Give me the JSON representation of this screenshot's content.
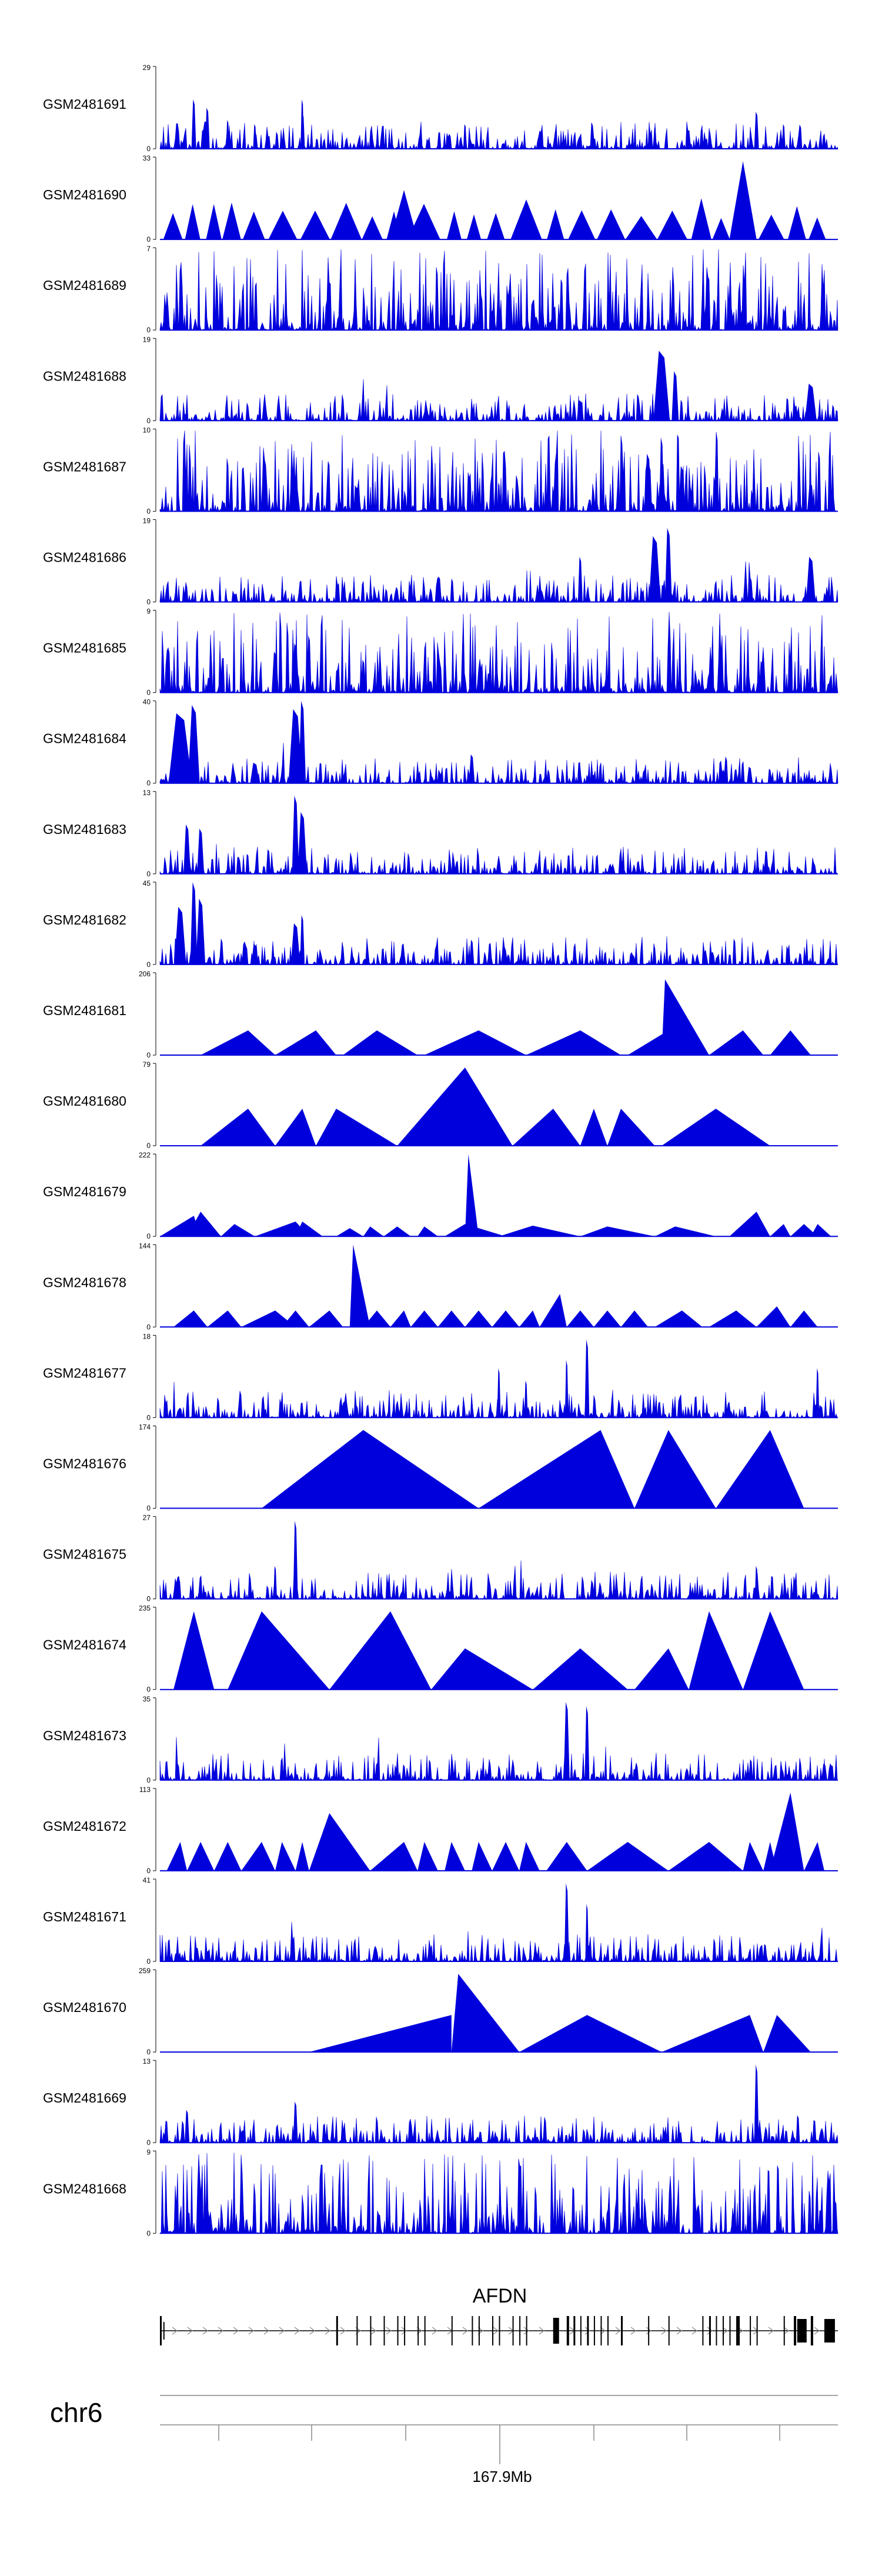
{
  "chart_data": {
    "type": "area",
    "colors": {
      "signal": "#0000dd",
      "axis": "#000000",
      "gene": "#000000",
      "intron_arrow": "#888888"
    },
    "tracks": [
      {
        "name": "GSM2481691",
        "ymax": 29,
        "ymin": 0,
        "style": "dense"
      },
      {
        "name": "GSM2481690",
        "ymax": 33,
        "ymin": 0,
        "style": "triangles"
      },
      {
        "name": "GSM2481689",
        "ymax": 7,
        "ymin": 0,
        "style": "dense"
      },
      {
        "name": "GSM2481688",
        "ymax": 19,
        "ymin": 0,
        "style": "dense"
      },
      {
        "name": "GSM2481687",
        "ymax": 10,
        "ymin": 0,
        "style": "dense"
      },
      {
        "name": "GSM2481686",
        "ymax": 19,
        "ymin": 0,
        "style": "dense"
      },
      {
        "name": "GSM2481685",
        "ymax": 9,
        "ymin": 0,
        "style": "dense"
      },
      {
        "name": "GSM2481684",
        "ymax": 40,
        "ymin": 0,
        "style": "dense"
      },
      {
        "name": "GSM2481683",
        "ymax": 13,
        "ymin": 0,
        "style": "dense"
      },
      {
        "name": "GSM2481682",
        "ymax": 45,
        "ymin": 0,
        "style": "dense"
      },
      {
        "name": "GSM2481681",
        "ymax": 206,
        "ymin": 0,
        "style": "triangles"
      },
      {
        "name": "GSM2481680",
        "ymax": 79,
        "ymin": 0,
        "style": "triangles"
      },
      {
        "name": "GSM2481679",
        "ymax": 222,
        "ymin": 0,
        "style": "triangles"
      },
      {
        "name": "GSM2481678",
        "ymax": 144,
        "ymin": 0,
        "style": "triangles"
      },
      {
        "name": "GSM2481677",
        "ymax": 18,
        "ymin": 0,
        "style": "dense"
      },
      {
        "name": "GSM2481676",
        "ymax": 174,
        "ymin": 0,
        "style": "triangles"
      },
      {
        "name": "GSM2481675",
        "ymax": 27,
        "ymin": 0,
        "style": "dense"
      },
      {
        "name": "GSM2481674",
        "ymax": 235,
        "ymin": 0,
        "style": "triangles"
      },
      {
        "name": "GSM2481673",
        "ymax": 35,
        "ymin": 0,
        "style": "dense"
      },
      {
        "name": "GSM2481672",
        "ymax": 113,
        "ymin": 0,
        "style": "triangles"
      },
      {
        "name": "GSM2481671",
        "ymax": 41,
        "ymin": 0,
        "style": "dense"
      },
      {
        "name": "GSM2481670",
        "ymax": 259,
        "ymin": 0,
        "style": "triangles"
      },
      {
        "name": "GSM2481669",
        "ymax": 13,
        "ymin": 0,
        "style": "dense"
      },
      {
        "name": "GSM2481668",
        "ymax": 9,
        "ymin": 0,
        "style": "dense"
      }
    ],
    "gene": {
      "name": "AFDN",
      "strand": "+"
    },
    "chromosome": "chr6",
    "axis": {
      "tick_label": "167.9Mb",
      "minor_tick_count": 8,
      "labeled_tick_index": 4
    }
  }
}
